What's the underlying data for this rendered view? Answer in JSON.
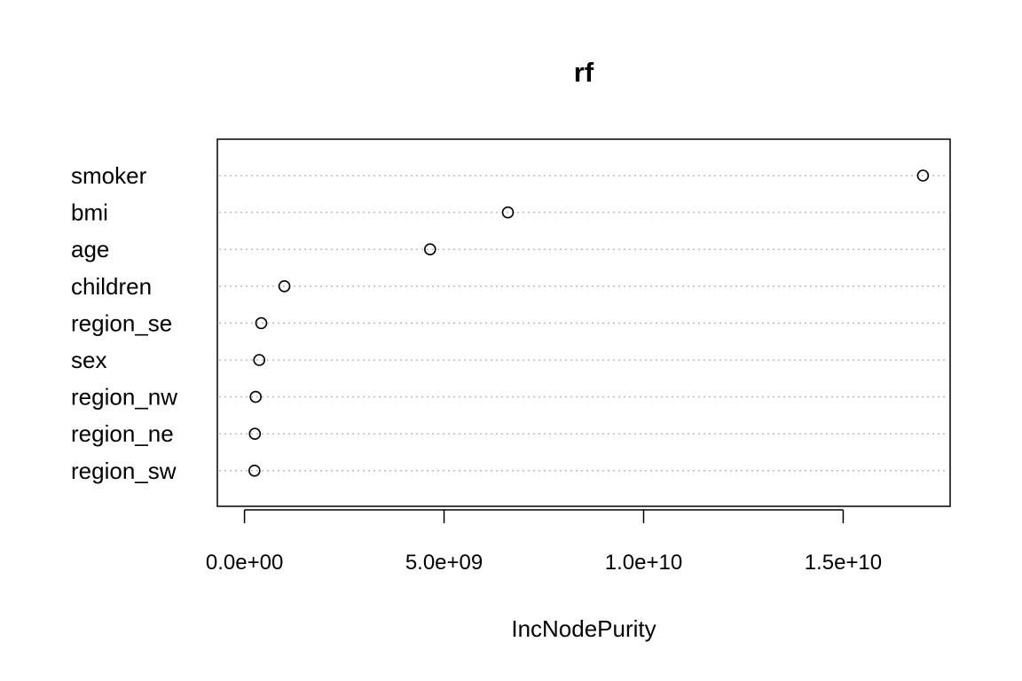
{
  "chart_data": {
    "type": "scatter",
    "title": "rf",
    "xlabel": "IncNodePurity",
    "ylabel": "",
    "categories": [
      "smoker",
      "bmi",
      "age",
      "children",
      "region_se",
      "sex",
      "region_nw",
      "region_ne",
      "region_sw"
    ],
    "values": [
      17000000000,
      6600000000,
      4650000000,
      1000000000,
      420000000,
      370000000,
      280000000,
      260000000,
      250000000
    ],
    "xticks": [
      0,
      5000000000,
      10000000000,
      15000000000
    ],
    "xtick_labels": [
      "0.0e+00",
      "5.0e+09",
      "1.0e+10",
      "1.5e+10"
    ],
    "xlim": [
      -680000000,
      17680000000
    ],
    "grid": true,
    "legend": "none"
  }
}
